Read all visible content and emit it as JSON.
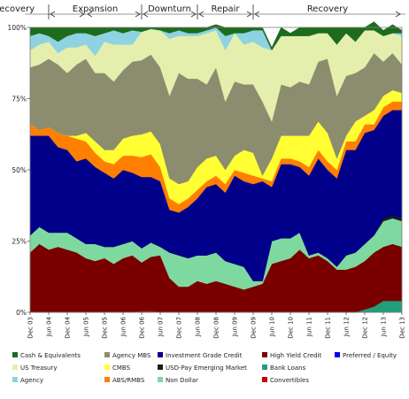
{
  "chart_data": {
    "type": "area",
    "stacked": true,
    "normalized_percent": true,
    "phases": [
      {
        "label": "Recovery",
        "from": "Dec 03",
        "to": "Jun 04"
      },
      {
        "label": "Expansion",
        "from": "Jun 04",
        "to": "Dec 06"
      },
      {
        "label": "Downturn",
        "from": "Dec 06",
        "to": "Jun 08"
      },
      {
        "label": "Repair",
        "from": "Jun 08",
        "to": "Dec 09"
      },
      {
        "label": "Recovery",
        "from": "Dec 09",
        "to": "Dec 13"
      }
    ],
    "y_ticks": [
      "0%",
      "25%",
      "50%",
      "75%",
      "100%"
    ],
    "ylim": [
      0,
      100
    ],
    "x_ticks": [
      "Dec 03",
      "Jun 04",
      "Dec 04",
      "Jun 05",
      "Dec 05",
      "Jun 06",
      "Dec 06",
      "Jun 07",
      "Dec 07",
      "Jun 08",
      "Dec 08",
      "Jun 09",
      "Dec 09",
      "Jun 10",
      "Dec 10",
      "Jun 11",
      "Dec 11",
      "Jun 12",
      "Dec 12",
      "Jun 13",
      "Dec 13"
    ],
    "x": [
      0,
      1,
      2,
      3,
      4,
      5,
      6,
      7,
      8,
      9,
      10,
      11,
      12,
      13,
      14,
      15,
      16,
      17,
      18,
      19,
      20,
      21,
      22,
      23,
      24,
      25,
      26,
      27,
      28,
      29,
      30,
      31,
      32,
      33,
      34,
      35,
      36,
      37,
      38,
      39,
      40
    ],
    "series_bottom_to_top": [
      {
        "name": "Convertibles",
        "color": "#c00000",
        "values": [
          0,
          0,
          0,
          0,
          0,
          0,
          0,
          0,
          0,
          0,
          0,
          0,
          0.5,
          0.5,
          0,
          0,
          0,
          0,
          0,
          0,
          0,
          0,
          0,
          0,
          0,
          0,
          0,
          0,
          0,
          0,
          0,
          0,
          0,
          0,
          0,
          0,
          0,
          0,
          0,
          0,
          0
        ]
      },
      {
        "name": "Bank Loans",
        "color": "#1f9f7a",
        "values": [
          0,
          0,
          0,
          0,
          0,
          0,
          0,
          0,
          0,
          0,
          0,
          0,
          0,
          0,
          0,
          0,
          0,
          0,
          0,
          0,
          0,
          0,
          0,
          0,
          0,
          0,
          0,
          0,
          0,
          0,
          0,
          0,
          0,
          0,
          0,
          0,
          1,
          2,
          4,
          4,
          4
        ]
      },
      {
        "name": "High Yield Credit",
        "color": "#7a0000",
        "values": [
          21,
          24,
          22,
          23,
          22,
          21,
          19,
          18,
          19,
          17,
          19,
          20,
          17,
          19,
          20,
          12,
          9,
          9,
          11,
          10,
          11,
          10,
          9,
          8,
          9,
          10,
          17,
          18,
          19,
          22,
          19,
          20,
          18,
          15,
          15,
          16,
          17,
          19,
          19,
          20,
          19
        ]
      },
      {
        "name": "Non Dollar",
        "color": "#7ed9a0",
        "values": [
          6,
          6,
          6,
          5,
          6,
          5,
          5,
          6,
          4,
          6,
          5,
          5,
          5,
          5,
          3,
          9,
          11,
          10,
          9,
          10,
          10,
          8,
          8,
          8,
          2,
          1,
          8,
          8,
          7,
          6,
          1,
          1,
          1,
          1,
          5,
          5,
          6,
          6,
          9,
          9,
          9
        ]
      },
      {
        "name": "USD-Pay Emerging Market",
        "color": "#1a1a1a",
        "values": [
          0,
          0,
          0,
          0,
          0,
          0,
          0,
          0,
          0,
          0,
          0,
          0,
          0,
          0,
          0,
          0,
          0,
          0,
          0,
          0,
          0,
          0,
          0,
          0,
          0,
          0,
          0,
          0,
          0,
          0,
          0,
          0,
          0,
          0,
          0,
          0,
          0,
          0,
          1,
          1,
          1
        ]
      },
      {
        "name": "Investment Grade Credit",
        "color": "#00008b",
        "values": [
          35,
          32,
          34,
          30,
          29,
          27,
          30,
          27,
          26,
          24,
          26,
          24,
          25,
          23,
          23,
          15,
          15,
          18,
          20,
          24,
          24,
          24,
          31,
          30,
          34,
          35,
          19,
          26,
          26,
          23,
          28,
          33,
          31,
          31,
          37,
          36,
          39,
          37,
          36,
          37,
          38
        ]
      },
      {
        "name": "Preferred / Equity",
        "color": "#0000ee",
        "values": [
          0,
          0,
          0,
          0,
          0,
          0,
          0,
          0,
          0,
          0,
          0,
          0,
          0,
          0,
          0,
          0,
          0,
          0,
          0,
          0,
          0,
          0,
          0,
          0,
          0,
          0,
          0,
          0,
          0,
          0,
          0,
          0,
          0,
          0,
          0,
          0,
          0,
          0,
          0,
          0,
          0
        ]
      },
      {
        "name": "ABS/RMBS",
        "color": "#ff7f00",
        "values": [
          4,
          2,
          3,
          5,
          5,
          8,
          6,
          5,
          4,
          5,
          5,
          6,
          7,
          8,
          5,
          4,
          3,
          3,
          3,
          2,
          3,
          3,
          2,
          3,
          3,
          1,
          2,
          2,
          2,
          2,
          3,
          3,
          3,
          3,
          3,
          3,
          3,
          2,
          3,
          3,
          3
        ]
      },
      {
        "name": "CMBS",
        "color": "#ffff33",
        "values": [
          0,
          0,
          0,
          0,
          0,
          1,
          3,
          4,
          4,
          5,
          6,
          7,
          8,
          8,
          8,
          7,
          7,
          6,
          8,
          8,
          7,
          5,
          5,
          8,
          8,
          1,
          8,
          8,
          8,
          9,
          11,
          10,
          10,
          4,
          2,
          7,
          3,
          5,
          4,
          4,
          3
        ]
      },
      {
        "name": "Agency MBS",
        "color": "#8c8c6e",
        "values": [
          20,
          23,
          24,
          24,
          22,
          25,
          26,
          24,
          27,
          24,
          24,
          26,
          26,
          27,
          27,
          29,
          39,
          36,
          31,
          26,
          31,
          24,
          26,
          23,
          24,
          26,
          13,
          18,
          17,
          19,
          18,
          21,
          26,
          22,
          21,
          17,
          17,
          20,
          12,
          13,
          10
        ]
      },
      {
        "name": "US Treasury",
        "color": "#e4efad",
        "values": [
          6,
          7,
          6,
          4,
          9,
          6,
          5,
          6,
          11,
          13,
          9,
          6,
          10,
          9,
          13,
          20,
          13,
          15,
          15,
          18,
          13,
          18,
          17,
          14,
          15,
          19,
          25,
          17,
          18,
          16,
          17,
          10,
          9,
          18,
          15,
          11,
          13,
          8,
          9,
          7,
          10
        ]
      },
      {
        "name": "Agency",
        "color": "#8fd3e3",
        "values": [
          5,
          4,
          2,
          4,
          4,
          5,
          4,
          7,
          3,
          5,
          4,
          5,
          0,
          0,
          0,
          2,
          2,
          1,
          1,
          1,
          1,
          5,
          0,
          4,
          4,
          6,
          0,
          0,
          0,
          0,
          0,
          0,
          0,
          0,
          0,
          0,
          0,
          0,
          0,
          0,
          1
        ]
      },
      {
        "name": "Cash & Equivalents",
        "color": "#1e6b1e",
        "values": [
          3,
          2,
          3,
          5,
          3,
          2,
          2,
          3,
          2,
          1,
          2,
          1,
          1.5,
          0.5,
          1,
          2,
          1,
          2,
          2,
          1,
          1,
          3,
          2,
          2,
          1,
          1,
          1,
          3,
          1,
          3,
          3,
          2,
          2,
          6,
          2,
          5,
          1,
          3,
          2,
          3,
          1
        ]
      }
    ]
  },
  "legend": [
    "Cash & Equivalents",
    "Agency MBS",
    "Investment Grade Credit",
    "High Yield Credit",
    "Preferred / Equity",
    "US Treasury",
    "CMBS",
    "USD-Pay Emerging Market",
    "Bank Loans",
    "Agency",
    "ABS/RMBS",
    "Non Dollar",
    "Convertibles"
  ]
}
